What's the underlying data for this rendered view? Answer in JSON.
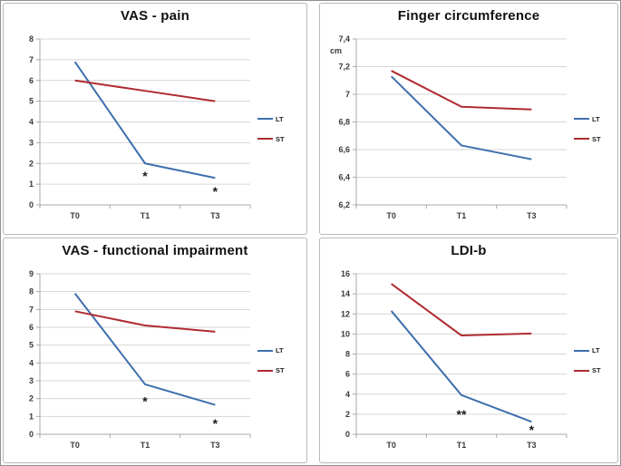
{
  "style": {
    "lt_color": "#3E6FAD",
    "st_color": "#B02B30",
    "grid_color": "#D6D6D6",
    "axis_color": "#A8A8A8",
    "tick_text_color": "#3A3A3A",
    "annotation_color": "#1A1A1A",
    "panel_border_color": "#B8B8B8"
  },
  "chart_data": [
    {
      "id": "vas-pain",
      "type": "line",
      "title": "VAS - pain",
      "categories": [
        "T0",
        "T1",
        "T3"
      ],
      "ylim": [
        0,
        8
      ],
      "grid": true,
      "legend_position": "right",
      "yticks": [
        {
          "v": 0,
          "label": "0"
        },
        {
          "v": 1,
          "label": "1"
        },
        {
          "v": 2,
          "label": "2"
        },
        {
          "v": 3,
          "label": "3"
        },
        {
          "v": 4,
          "label": "4"
        },
        {
          "v": 5,
          "label": "5"
        },
        {
          "v": 6,
          "label": "6"
        },
        {
          "v": 7,
          "label": "7"
        },
        {
          "v": 8,
          "label": "8"
        }
      ],
      "series": [
        {
          "name": "LT",
          "color": "#3E6FAD",
          "values": [
            6.9,
            2.0,
            1.3
          ]
        },
        {
          "name": "ST",
          "color": "#B02B30",
          "values": [
            6.0,
            5.5,
            5.0
          ]
        }
      ],
      "annotations": [
        {
          "xi": 1,
          "y": 1.45,
          "text": "*"
        },
        {
          "xi": 2,
          "y": 0.7,
          "text": "*"
        }
      ]
    },
    {
      "id": "finger-circumference",
      "type": "line",
      "title": "Finger circumference",
      "unit_label": "cm",
      "categories": [
        "T0",
        "T1",
        "T3"
      ],
      "ylim": [
        6.2,
        7.4
      ],
      "grid": true,
      "legend_position": "right",
      "yticks": [
        {
          "v": 6.2,
          "label": "6,2"
        },
        {
          "v": 6.4,
          "label": "6,4"
        },
        {
          "v": 6.6,
          "label": "6,6"
        },
        {
          "v": 6.8,
          "label": "6,8"
        },
        {
          "v": 7,
          "label": "7"
        },
        {
          "v": 7.2,
          "label": "7,2"
        },
        {
          "v": 7.4,
          "label": "7,4"
        }
      ],
      "series": [
        {
          "name": "LT",
          "color": "#3E6FAD",
          "values": [
            7.13,
            6.63,
            6.53
          ]
        },
        {
          "name": "ST",
          "color": "#B02B30",
          "values": [
            7.17,
            6.91,
            6.89
          ]
        }
      ],
      "annotations": []
    },
    {
      "id": "vas-functional-impairment",
      "type": "line",
      "title": "VAS - functional impairment",
      "categories": [
        "T0",
        "T1",
        "T3"
      ],
      "ylim": [
        0,
        9
      ],
      "grid": true,
      "legend_position": "right",
      "yticks": [
        {
          "v": 0,
          "label": "0"
        },
        {
          "v": 1,
          "label": "1"
        },
        {
          "v": 2,
          "label": "2"
        },
        {
          "v": 3,
          "label": "3"
        },
        {
          "v": 4,
          "label": "4"
        },
        {
          "v": 5,
          "label": "5"
        },
        {
          "v": 6,
          "label": "6"
        },
        {
          "v": 7,
          "label": "7"
        },
        {
          "v": 8,
          "label": "8"
        },
        {
          "v": 9,
          "label": "9"
        }
      ],
      "series": [
        {
          "name": "LT",
          "color": "#3E6FAD",
          "values": [
            7.9,
            2.8,
            1.65
          ]
        },
        {
          "name": "ST",
          "color": "#B02B30",
          "values": [
            6.9,
            6.1,
            5.75
          ]
        }
      ],
      "annotations": [
        {
          "xi": 1,
          "y": 1.9,
          "text": "*"
        },
        {
          "xi": 2,
          "y": 0.65,
          "text": "*"
        }
      ]
    },
    {
      "id": "ldi-b",
      "type": "line",
      "title": "LDI-b",
      "categories": [
        "T0",
        "T1",
        "T3"
      ],
      "ylim": [
        0,
        16
      ],
      "grid": true,
      "legend_position": "right",
      "yticks": [
        {
          "v": 0,
          "label": "0"
        },
        {
          "v": 2,
          "label": "2"
        },
        {
          "v": 4,
          "label": "4"
        },
        {
          "v": 6,
          "label": "6"
        },
        {
          "v": 8,
          "label": "8"
        },
        {
          "v": 10,
          "label": "10"
        },
        {
          "v": 12,
          "label": "12"
        },
        {
          "v": 14,
          "label": "14"
        },
        {
          "v": 16,
          "label": "16"
        }
      ],
      "series": [
        {
          "name": "LT",
          "color": "#3E6FAD",
          "values": [
            12.3,
            3.9,
            1.25
          ]
        },
        {
          "name": "ST",
          "color": "#B02B30",
          "values": [
            15.0,
            9.85,
            10.05
          ]
        }
      ],
      "annotations": [
        {
          "xi": 1,
          "y": 2.1,
          "text": "**"
        },
        {
          "xi": 2,
          "y": 0.55,
          "text": "*"
        }
      ]
    }
  ]
}
